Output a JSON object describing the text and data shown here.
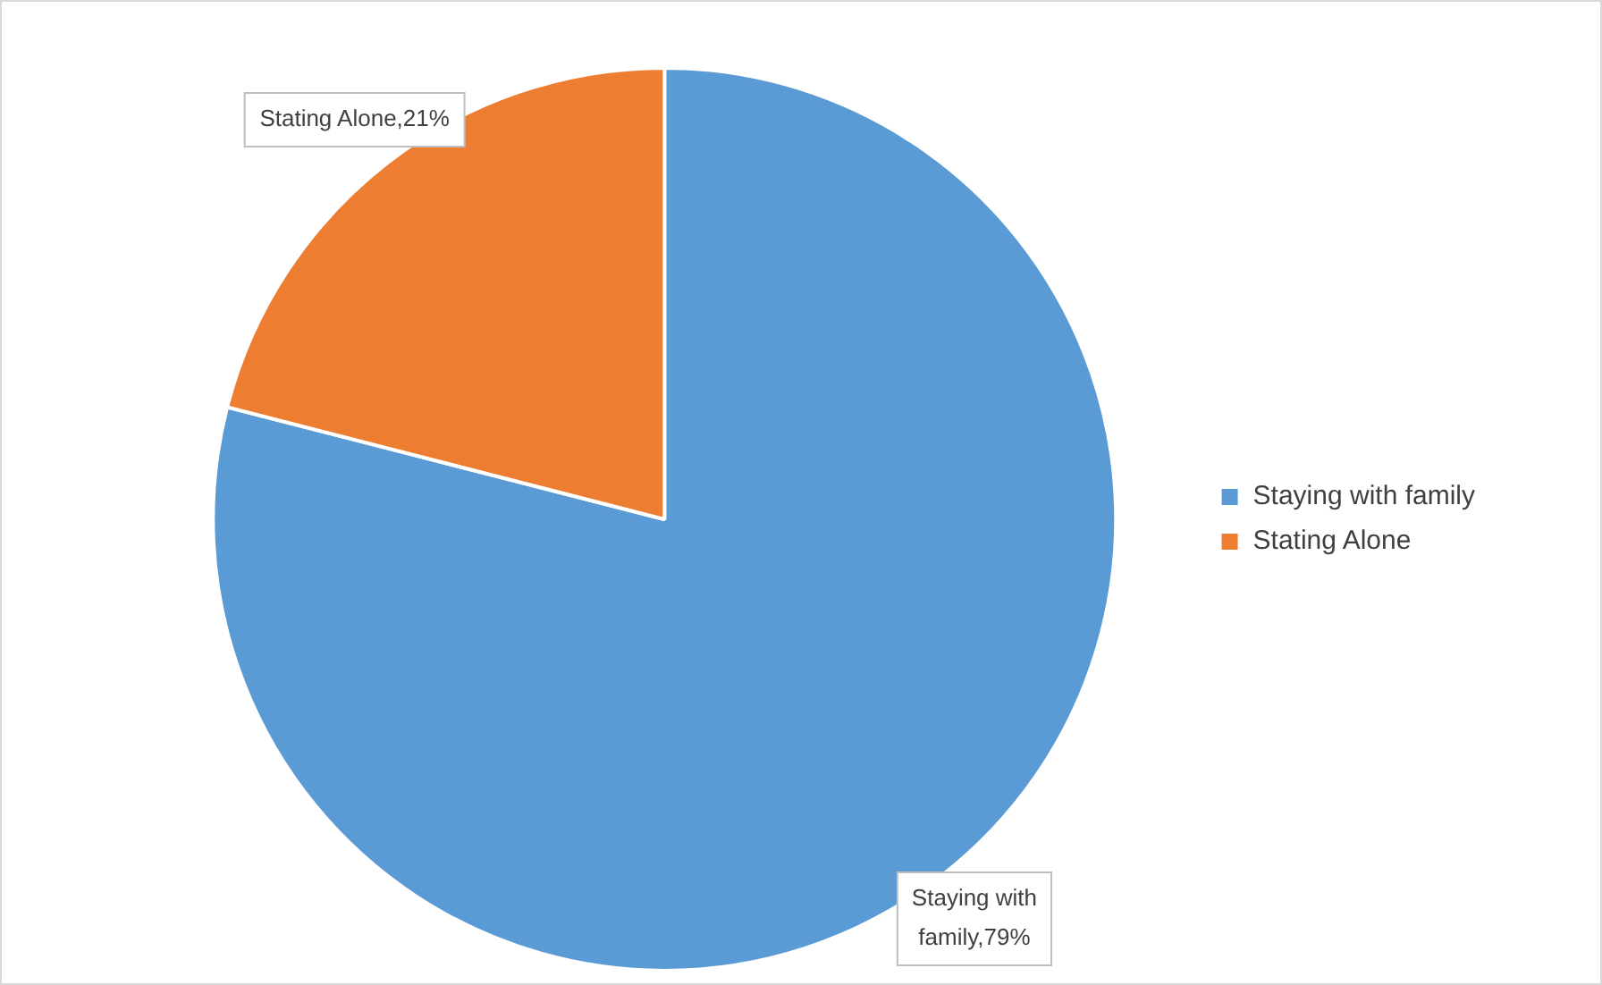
{
  "chart_data": {
    "type": "pie",
    "categories": [
      "Staying with family",
      "Stating Alone"
    ],
    "values": [
      79,
      21
    ],
    "colors": [
      "#5b9bd5",
      "#ed7d31"
    ],
    "value_labels": [
      "Staying with family,79%",
      "Stating Alone,21%"
    ],
    "legend": "right"
  }
}
